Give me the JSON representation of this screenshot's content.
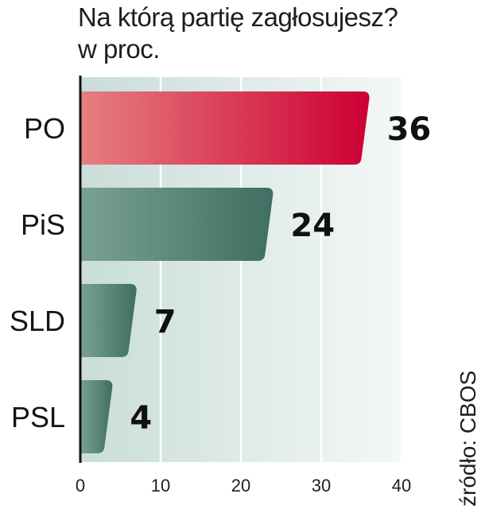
{
  "chart_data": {
    "type": "bar",
    "orientation": "horizontal",
    "title": "Na którą partię zagłosujesz?",
    "subtitle": "w proc.",
    "categories": [
      "PO",
      "PiS",
      "SLD",
      "PSL"
    ],
    "values": [
      36,
      24,
      7,
      4
    ],
    "xlim": [
      0,
      40
    ],
    "x_ticks": [
      0,
      10,
      20,
      30,
      40
    ],
    "grid": true,
    "colors": {
      "PO": [
        "#e58080",
        "#cc0033"
      ],
      "PiS": [
        "#7aa196",
        "#406e61"
      ],
      "SLD": [
        "#7aa196",
        "#406e61"
      ],
      "PSL": [
        "#7aa196",
        "#406e61"
      ]
    }
  },
  "source": "źródło: CBOS"
}
